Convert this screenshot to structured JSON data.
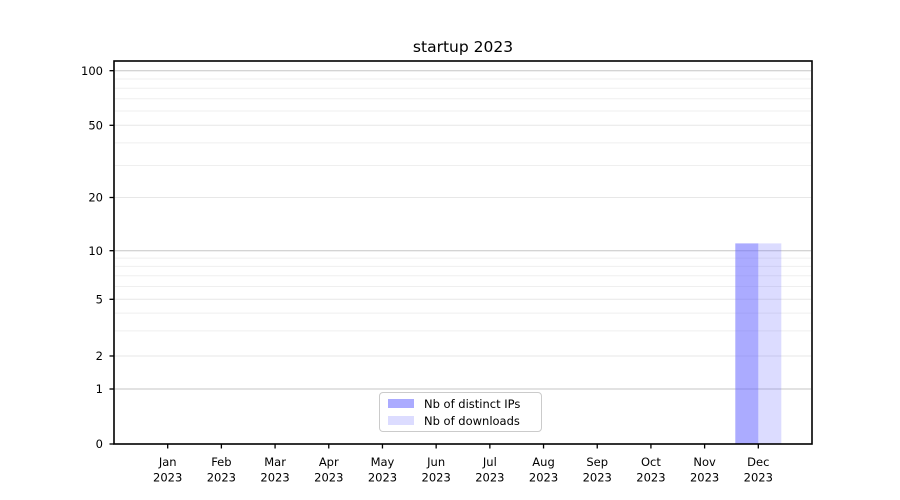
{
  "figure": {
    "background": "#ffffff"
  },
  "chart_data": {
    "type": "bar",
    "title": "startup 2023",
    "x_axis": {
      "months": [
        "Jan",
        "Feb",
        "Mar",
        "Apr",
        "May",
        "Jun",
        "Jul",
        "Aug",
        "Sep",
        "Oct",
        "Nov",
        "Dec"
      ],
      "year": "2023"
    },
    "y_axis": {
      "scale": "symlog",
      "ticks": [
        0,
        1,
        2,
        5,
        10,
        20,
        50,
        100
      ],
      "minor_ticks": [
        3,
        4,
        6,
        7,
        8,
        9,
        30,
        40,
        60,
        70,
        80,
        90
      ],
      "ylim": [
        0,
        113
      ]
    },
    "series": [
      {
        "name": "Nb of distinct IPs",
        "base_color": "#6666ff",
        "fill_opacity": 0.55,
        "legend_color": "#ababff",
        "values": [
          0,
          0,
          0,
          0,
          0,
          0,
          0,
          0,
          0,
          0,
          0,
          11
        ]
      },
      {
        "name": "Nb of downloads",
        "base_color": "#6666ff",
        "fill_opacity": 0.23,
        "legend_color": "#dcdcff",
        "values": [
          0,
          0,
          0,
          0,
          0,
          0,
          0,
          0,
          0,
          0,
          0,
          11
        ]
      }
    ],
    "grid": "horizontal",
    "legend_position": "lower center",
    "colors": {
      "grid_decade": "#c6c6c6",
      "grid_labeled": "#e7e7e7",
      "grid_minor": "#efefef",
      "axis": "#000000"
    }
  }
}
